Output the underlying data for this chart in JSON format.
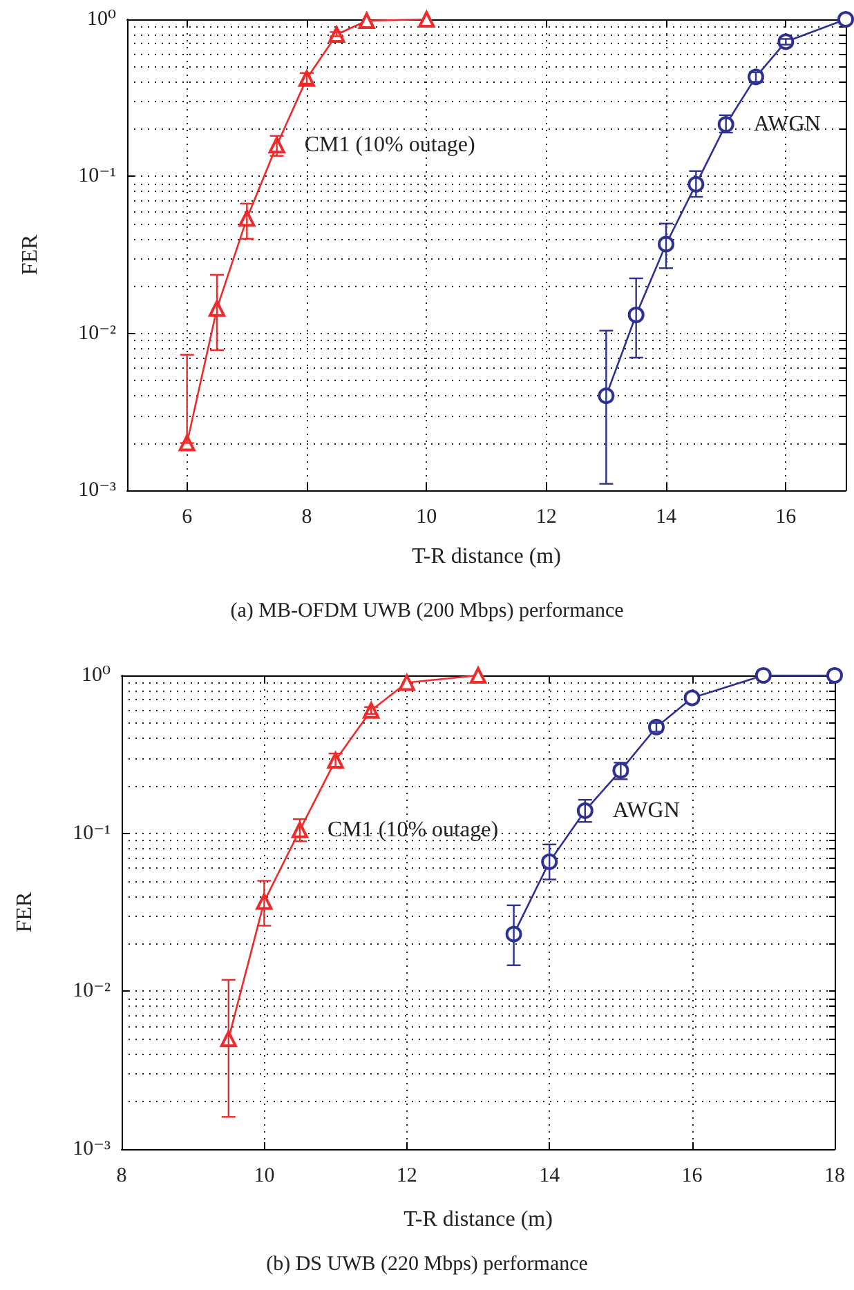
{
  "chart_data": [
    {
      "type": "line",
      "title": "(a) MB-OFDM UWB (200 Mbps) performance",
      "xlabel": "T-R distance (m)",
      "ylabel": "FER",
      "xlim": [
        5,
        17
      ],
      "xticks": [
        6,
        8,
        10,
        12,
        14,
        16
      ],
      "ylim": [
        0.001,
        1
      ],
      "yticks": [
        {
          "value": 0.001,
          "label": "10⁻³"
        },
        {
          "value": 0.01,
          "label": "10⁻²"
        },
        {
          "value": 0.1,
          "label": "10⁻¹"
        },
        {
          "value": 1,
          "label": "10⁰"
        }
      ],
      "log": "y",
      "grid": true,
      "series": [
        {
          "name": "CM1 (10% outage)",
          "color": "#ee2a2a",
          "marker": "triangle",
          "x": [
            6,
            6.5,
            7,
            7.5,
            8,
            8.5,
            9,
            10
          ],
          "values": [
            0.002,
            0.0144,
            0.054,
            0.158,
            0.42,
            0.8,
            0.98,
            1.0
          ],
          "errors": [
            [
              0.002,
              0.0073
            ],
            [
              0.0078,
              0.0236
            ],
            [
              0.04,
              0.067
            ],
            [
              0.135,
              0.181
            ],
            [
              0.39,
              0.455
            ],
            [
              0.78,
              0.83
            ],
            null,
            null
          ]
        },
        {
          "name": "AWGN",
          "color": "#2e3192",
          "marker": "circle",
          "x": [
            13,
            13.5,
            14,
            14.5,
            15,
            15.5,
            16,
            17
          ],
          "values": [
            0.004,
            0.0131,
            0.037,
            0.089,
            0.214,
            0.43,
            0.72,
            1.0
          ],
          "errors": [
            [
              0.0011,
              0.0104
            ],
            [
              0.007,
              0.0224
            ],
            [
              0.026,
              0.05
            ],
            [
              0.074,
              0.108
            ],
            [
              0.19,
              0.245
            ],
            [
              0.4,
              0.46
            ],
            [
              0.69,
              0.75
            ],
            null
          ]
        }
      ]
    },
    {
      "type": "line",
      "title": "(b) DS UWB (220 Mbps) performance",
      "xlabel": "T-R distance (m)",
      "ylabel": "FER",
      "xlim": [
        8,
        18
      ],
      "xticks": [
        8,
        10,
        12,
        14,
        16,
        18
      ],
      "ylim": [
        0.001,
        1
      ],
      "yticks": [
        {
          "value": 0.001,
          "label": "10⁻³"
        },
        {
          "value": 0.01,
          "label": "10⁻²"
        },
        {
          "value": 0.1,
          "label": "10⁻¹"
        },
        {
          "value": 1,
          "label": "10⁰"
        }
      ],
      "log": "y",
      "grid": true,
      "series": [
        {
          "name": "CM1 (10% outage)",
          "color": "#ee2a2a",
          "marker": "triangle",
          "x": [
            9.5,
            10,
            10.5,
            11,
            11.5,
            12,
            13
          ],
          "values": [
            0.005,
            0.037,
            0.105,
            0.29,
            0.6,
            0.9,
            1.0
          ],
          "errors": [
            [
              0.0016,
              0.0118
            ],
            [
              0.026,
              0.05
            ],
            [
              0.089,
              0.123
            ],
            [
              0.26,
              0.32
            ],
            [
              0.57,
              0.63
            ],
            null,
            null
          ]
        },
        {
          "name": "AWGN",
          "color": "#2e3192",
          "marker": "circle",
          "x": [
            13.5,
            14,
            14.5,
            15,
            15.5,
            16,
            17,
            18
          ],
          "values": [
            0.023,
            0.066,
            0.139,
            0.25,
            0.47,
            0.72,
            1.0,
            1.0
          ],
          "errors": [
            [
              0.0146,
              0.035
            ],
            [
              0.051,
              0.085
            ],
            [
              0.118,
              0.163
            ],
            [
              0.22,
              0.28
            ],
            [
              0.44,
              0.5
            ],
            null,
            null,
            null
          ]
        }
      ]
    }
  ]
}
